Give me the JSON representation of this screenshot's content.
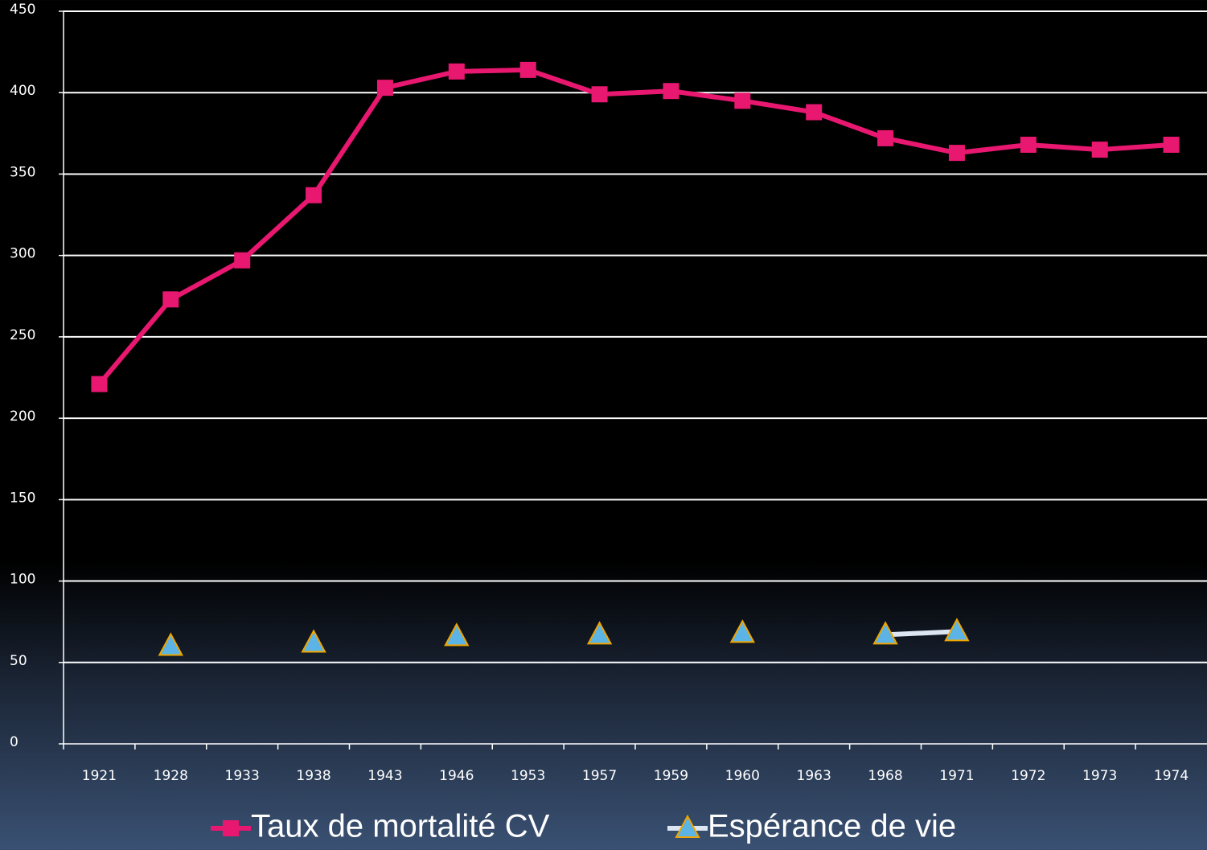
{
  "chart_data": {
    "type": "line",
    "categories": [
      "1921",
      "1928",
      "1933",
      "1938",
      "1943",
      "1946",
      "1953",
      "1957",
      "1959",
      "1960",
      "1963",
      "1968",
      "1971",
      "1972",
      "1973",
      "1974"
    ],
    "series": [
      {
        "name": "Taux de mortalité CV",
        "color": "#e8176f",
        "marker": "square",
        "values": [
          221,
          273,
          297,
          337,
          403,
          413,
          414,
          399,
          401,
          395,
          388,
          372,
          363,
          368,
          365,
          368
        ]
      },
      {
        "name": "Espérance de vie",
        "color": "#dce6f2",
        "marker": "triangle",
        "marker_color": "#5bb4e5",
        "values": [
          null,
          60,
          null,
          62,
          null,
          66,
          null,
          67,
          null,
          68,
          null,
          67,
          69,
          null,
          null,
          null
        ]
      }
    ],
    "ylim": [
      0,
      450
    ],
    "yticks": [
      0,
      50,
      100,
      150,
      200,
      250,
      300,
      350,
      400,
      450
    ],
    "grid": true,
    "legend": "bottom"
  }
}
